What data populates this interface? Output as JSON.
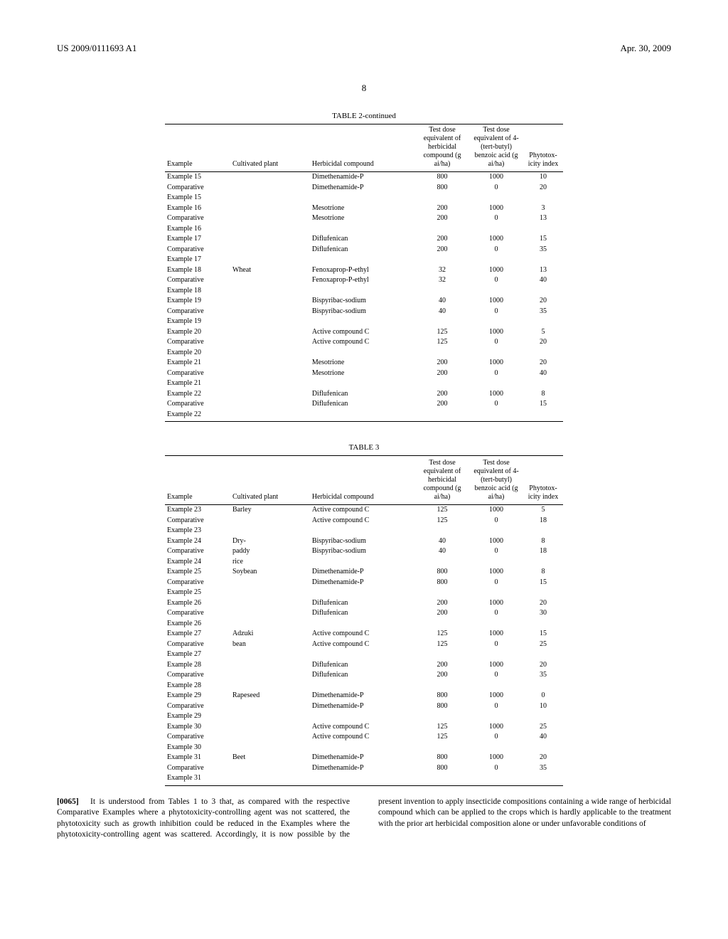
{
  "header": {
    "patent_number": "US 2009/0111693 A1",
    "date": "Apr. 30, 2009"
  },
  "page_number": "8",
  "table2": {
    "title": "TABLE 2-continued",
    "headers": {
      "example": "Example",
      "cultivated_plant": "Cultivated plant",
      "herbicidal_compound": "Herbicidal compound",
      "test_dose_herbicidal": "Test dose equivalent of herbicidal compound (g ai/ha)",
      "test_dose_benzoic": "Test dose equivalent of 4-(tert-butyl) benzoic acid (g ai/ha)",
      "phytotox": "Phytotox-icity index"
    },
    "rows": [
      {
        "example": "Example 15",
        "plant": "",
        "compound": "Dimethenamide-P",
        "d1": "800",
        "d2": "1000",
        "idx": "10"
      },
      {
        "example": "Comparative Example 15",
        "plant": "",
        "compound": "Dimethenamide-P",
        "d1": "800",
        "d2": "0",
        "idx": "20"
      },
      {
        "example": "Example 16",
        "plant": "",
        "compound": "Mesotrione",
        "d1": "200",
        "d2": "1000",
        "idx": "3"
      },
      {
        "example": "Comparative Example 16",
        "plant": "",
        "compound": "Mesotrione",
        "d1": "200",
        "d2": "0",
        "idx": "13"
      },
      {
        "example": "Example 17",
        "plant": "",
        "compound": "Diflufenican",
        "d1": "200",
        "d2": "1000",
        "idx": "15"
      },
      {
        "example": "Comparative Example 17",
        "plant": "",
        "compound": "Diflufenican",
        "d1": "200",
        "d2": "0",
        "idx": "35"
      },
      {
        "example": "Example 18",
        "plant": "Wheat",
        "compound": "Fenoxaprop-P-ethyl",
        "d1": "32",
        "d2": "1000",
        "idx": "13"
      },
      {
        "example": "Comparative Example 18",
        "plant": "",
        "compound": "Fenoxaprop-P-ethyl",
        "d1": "32",
        "d2": "0",
        "idx": "40"
      },
      {
        "example": "Example 19",
        "plant": "",
        "compound": "Bispyribac-sodium",
        "d1": "40",
        "d2": "1000",
        "idx": "20"
      },
      {
        "example": "Comparative Example 19",
        "plant": "",
        "compound": "Bispyribac-sodium",
        "d1": "40",
        "d2": "0",
        "idx": "35"
      },
      {
        "example": "Example 20",
        "plant": "",
        "compound": "Active compound C",
        "d1": "125",
        "d2": "1000",
        "idx": "5"
      },
      {
        "example": "Comparative Example 20",
        "plant": "",
        "compound": "Active compound C",
        "d1": "125",
        "d2": "0",
        "idx": "20"
      },
      {
        "example": "Example 21",
        "plant": "",
        "compound": "Mesotrione",
        "d1": "200",
        "d2": "1000",
        "idx": "20"
      },
      {
        "example": "Comparative Example 21",
        "plant": "",
        "compound": "Mesotrione",
        "d1": "200",
        "d2": "0",
        "idx": "40"
      },
      {
        "example": "Example 22",
        "plant": "",
        "compound": "Diflufenican",
        "d1": "200",
        "d2": "1000",
        "idx": "8"
      },
      {
        "example": "Comparative Example 22",
        "plant": "",
        "compound": "Diflufenican",
        "d1": "200",
        "d2": "0",
        "idx": "15"
      }
    ]
  },
  "table3": {
    "title": "TABLE 3",
    "headers": {
      "example": "Example",
      "cultivated_plant": "Cultivated plant",
      "herbicidal_compound": "Herbicidal compound",
      "test_dose_herbicidal": "Test dose equivalent of herbicidal compound (g ai/ha)",
      "test_dose_benzoic": "Test dose equivalent of 4-(tert-butyl) benzoic acid (g ai/ha)",
      "phytotox": "Phytotox-icity index"
    },
    "rows": [
      {
        "example": "Example 23",
        "plant": "Barley",
        "compound": "Active compound C",
        "d1": "125",
        "d2": "1000",
        "idx": "5"
      },
      {
        "example": "Comparative Example 23",
        "plant": "",
        "compound": "Active compound C",
        "d1": "125",
        "d2": "0",
        "idx": "18"
      },
      {
        "example": "Example 24",
        "plant": "Dry-",
        "compound": "Bispyribac-sodium",
        "d1": "40",
        "d2": "1000",
        "idx": "8"
      },
      {
        "example": "Comparative Example 24",
        "plant": "paddy rice",
        "compound": "Bispyribac-sodium",
        "d1": "40",
        "d2": "0",
        "idx": "18"
      },
      {
        "example": "Example 25",
        "plant": "Soybean",
        "compound": "Dimethenamide-P",
        "d1": "800",
        "d2": "1000",
        "idx": "8"
      },
      {
        "example": "Comparative Example 25",
        "plant": "",
        "compound": "Dimethenamide-P",
        "d1": "800",
        "d2": "0",
        "idx": "15"
      },
      {
        "example": "Example 26",
        "plant": "",
        "compound": "Diflufenican",
        "d1": "200",
        "d2": "1000",
        "idx": "20"
      },
      {
        "example": "Comparative Example 26",
        "plant": "",
        "compound": "Diflufenican",
        "d1": "200",
        "d2": "0",
        "idx": "30"
      },
      {
        "example": "Example 27",
        "plant": "Adzuki",
        "compound": "Active compound C",
        "d1": "125",
        "d2": "1000",
        "idx": "15"
      },
      {
        "example": "Comparative Example 27",
        "plant": "bean",
        "compound": "Active compound C",
        "d1": "125",
        "d2": "0",
        "idx": "25"
      },
      {
        "example": "Example 28",
        "plant": "",
        "compound": "Diflufenican",
        "d1": "200",
        "d2": "1000",
        "idx": "20"
      },
      {
        "example": "Comparative Example 28",
        "plant": "",
        "compound": "Diflufenican",
        "d1": "200",
        "d2": "0",
        "idx": "35"
      },
      {
        "example": "Example 29",
        "plant": "Rapeseed",
        "compound": "Dimethenamide-P",
        "d1": "800",
        "d2": "1000",
        "idx": "0"
      },
      {
        "example": "Comparative Example 29",
        "plant": "",
        "compound": "Dimethenamide-P",
        "d1": "800",
        "d2": "0",
        "idx": "10"
      },
      {
        "example": "Example 30",
        "plant": "",
        "compound": "Active compound C",
        "d1": "125",
        "d2": "1000",
        "idx": "25"
      },
      {
        "example": "Comparative Example 30",
        "plant": "",
        "compound": "Active compound C",
        "d1": "125",
        "d2": "0",
        "idx": "40"
      },
      {
        "example": "Example 31",
        "plant": "Beet",
        "compound": "Dimethenamide-P",
        "d1": "800",
        "d2": "1000",
        "idx": "20"
      },
      {
        "example": "Comparative Example 31",
        "plant": "",
        "compound": "Dimethenamide-P",
        "d1": "800",
        "d2": "0",
        "idx": "35"
      }
    ]
  },
  "paragraph": {
    "number": "[0065]",
    "text": "It is understood from Tables 1 to 3 that, as compared with the respective Comparative Examples where a phytotoxicity-controlling agent was not scattered, the phytotoxicity such as growth inhibition could be reduced in the Examples where the phytotoxicity-controlling agent was scattered. Accordingly, it is now possible by the present invention to apply insecticide compositions containing a wide range of herbicidal compound which can be applied to the crops which is hardly applicable to the treatment with the prior art herbicidal composition alone or under unfavorable conditions of"
  }
}
